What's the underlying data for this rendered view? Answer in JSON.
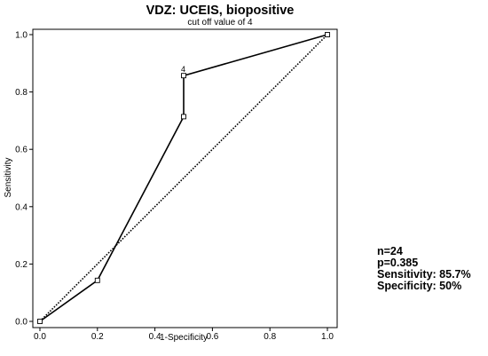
{
  "chart_data": {
    "type": "line",
    "title": "VDZ: UCEIS, biopositive",
    "subtitle": "cut off value of 4",
    "xlabel": "1-Specificity",
    "ylabel": "Sensitivity",
    "xlim": [
      0.0,
      1.0
    ],
    "ylim": [
      0.0,
      1.0
    ],
    "x_ticks": [
      "0.0",
      "0.2",
      "0.4",
      "0.6",
      "0.8",
      "1.0"
    ],
    "y_ticks": [
      "0.0",
      "0.2",
      "0.4",
      "0.6",
      "0.8",
      "1.0"
    ],
    "grid": false,
    "series": [
      {
        "style": "solid",
        "marker": "square",
        "x": [
          0.0,
          0.2,
          0.5,
          0.5,
          1.0
        ],
        "y": [
          0.0,
          0.143,
          0.714,
          0.857,
          1.0
        ]
      },
      {
        "style": "dotted",
        "x": [
          0.0,
          1.0
        ],
        "y": [
          0.0,
          1.0
        ]
      }
    ],
    "annotations": [
      {
        "text": "4",
        "x": 0.5,
        "y": 0.857
      }
    ]
  },
  "stats": {
    "n": "n=24",
    "p": "p=0.385",
    "sensitivity": "Sensitivity: 85.7%",
    "specificity": "Specificity: 50%"
  }
}
